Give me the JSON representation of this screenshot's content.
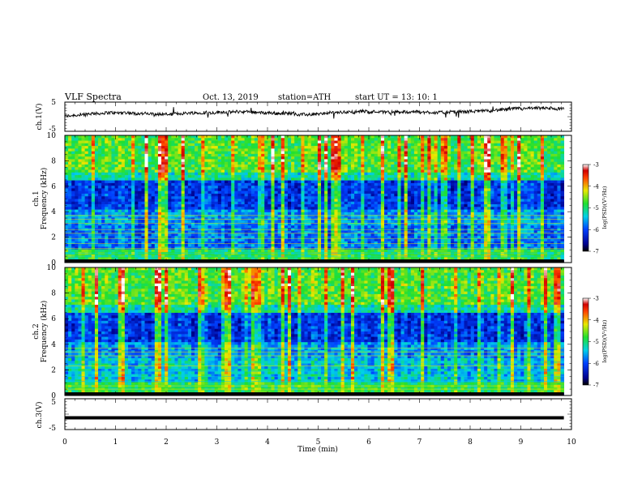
{
  "header": {
    "title": "VLF  Spectra",
    "date": "Oct. 13, 2019",
    "station": "station=ATH",
    "start": "start  UT  =    13: 10: 1"
  },
  "chart_data": [
    {
      "type": "line",
      "id": "ch1-waveform",
      "ylabel": "ch.1(V)",
      "ylim": [
        -5,
        5
      ],
      "yticks": [
        "5",
        "-5"
      ],
      "xlim": [
        0,
        10
      ],
      "x_unit": "min",
      "description_values": "noisy trace around ~0 V, amplitude ~±1 V, ending near 9.85 min"
    },
    {
      "type": "heatmap",
      "id": "ch1-spectrogram",
      "ylabel_top": "ch.1",
      "ylabel": "Frequency  (kHz)",
      "ylim": [
        0,
        10
      ],
      "yticks": [
        "0",
        "2",
        "4",
        "6",
        "8",
        "10"
      ],
      "xlim": [
        0,
        10
      ],
      "data_end_min": 9.85,
      "colorbar": {
        "label": "log(PSD)(V²/Hz)",
        "range": [
          -7,
          -3
        ],
        "ticks": [
          "-3",
          "-4",
          "-5",
          "-6",
          "-7"
        ]
      }
    },
    {
      "type": "heatmap",
      "id": "ch2-spectrogram",
      "ylabel_top": "ch.2",
      "ylabel": "Frequency  (kHz)",
      "ylim": [
        0,
        10
      ],
      "yticks": [
        "0",
        "2",
        "4",
        "6",
        "8",
        "10"
      ],
      "xlim": [
        0,
        10
      ],
      "data_end_min": 9.85,
      "colorbar": {
        "label": "log(PSD)(V²/Hz)",
        "range": [
          -7,
          -3
        ],
        "ticks": [
          "-3",
          "-4",
          "-5",
          "-6",
          "-7"
        ]
      }
    },
    {
      "type": "line",
      "id": "ch3-waveform",
      "ylabel": "ch.3(V)",
      "ylim": [
        -5,
        5
      ],
      "yticks": [
        "5",
        "-5"
      ],
      "xlim": [
        0,
        10
      ],
      "xlabel": "Time  (min)",
      "xticks": [
        "0",
        "1",
        "2",
        "3",
        "4",
        "5",
        "6",
        "7",
        "8",
        "9",
        "10"
      ],
      "constant_value": -1.2
    }
  ]
}
